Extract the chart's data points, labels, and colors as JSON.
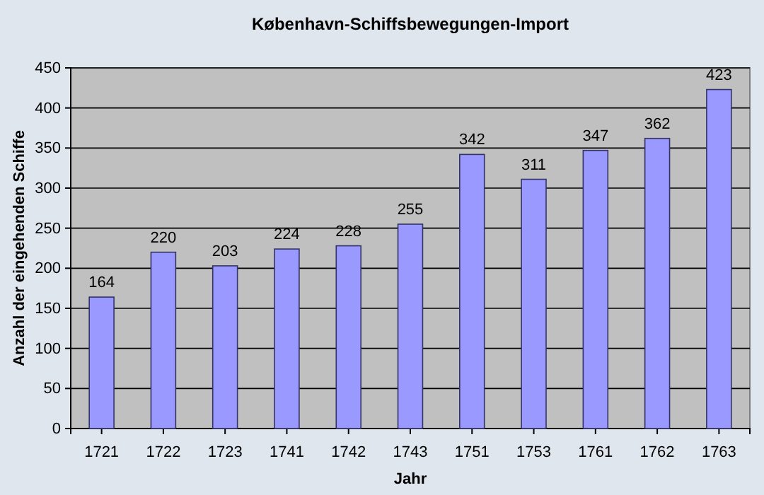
{
  "chart_data": {
    "type": "bar",
    "title": "København-Schiffsbewegungen-Import",
    "xlabel": "Jahr",
    "ylabel": "Anzahl der eingehenden Schiffe",
    "categories": [
      "1721",
      "1722",
      "1723",
      "1741",
      "1742",
      "1743",
      "1751",
      "1753",
      "1761",
      "1762",
      "1763"
    ],
    "values": [
      164,
      220,
      203,
      224,
      228,
      255,
      342,
      311,
      347,
      362,
      423
    ],
    "color": "#9999ff",
    "ylim": [
      0,
      450
    ],
    "yticks": [
      0,
      50,
      100,
      150,
      200,
      250,
      300,
      350,
      400,
      450
    ],
    "grid": "y",
    "data_labels": true
  }
}
